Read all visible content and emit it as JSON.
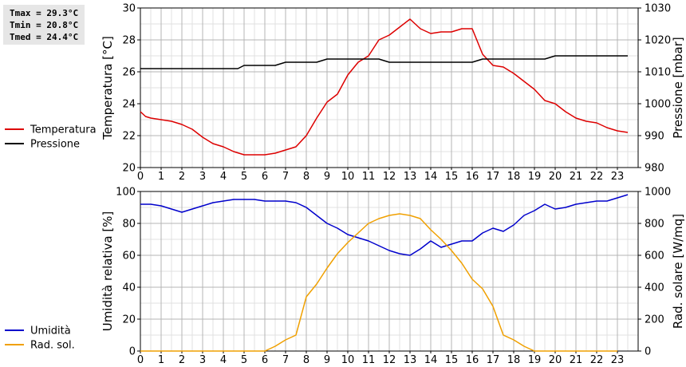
{
  "stats": {
    "tmax": "Tmax = 29.3°C",
    "tmin": "Tmin = 20.8°C",
    "tmed": "Tmed = 24.4°C"
  },
  "chart_data": [
    {
      "type": "line",
      "ylabel": "Temperatura [°C]",
      "y2label": "Pressione [mbar]",
      "x_ticks": [
        0,
        1,
        2,
        3,
        4,
        5,
        6,
        7,
        8,
        9,
        10,
        11,
        12,
        13,
        14,
        15,
        16,
        17,
        18,
        19,
        20,
        21,
        22,
        23
      ],
      "xlim": [
        0,
        24
      ],
      "ylim": [
        20,
        30
      ],
      "y_ticks": [
        20,
        22,
        24,
        26,
        28,
        30
      ],
      "y2lim": [
        980,
        1030
      ],
      "y2_ticks": [
        980,
        990,
        1000,
        1010,
        1020,
        1030
      ],
      "grid": true,
      "legend_position": "left",
      "series": [
        {
          "name": "Temperatura",
          "color": "#dd0000",
          "axis": "left",
          "x": [
            0,
            0.25,
            0.5,
            1,
            1.5,
            2,
            2.5,
            3,
            3.5,
            4,
            4.5,
            5,
            5.5,
            6,
            6.5,
            7,
            7.5,
            8,
            8.5,
            9,
            9.5,
            10,
            10.5,
            11,
            11.5,
            12,
            12.5,
            13,
            13.5,
            14,
            14.5,
            15,
            15.5,
            16,
            16.5,
            17,
            17.5,
            18,
            18.5,
            19,
            19.5,
            20,
            20.5,
            21,
            21.5,
            22,
            22.5,
            23,
            23.5
          ],
          "y": [
            23.5,
            23.2,
            23.1,
            23.0,
            22.9,
            22.7,
            22.4,
            21.9,
            21.5,
            21.3,
            21.0,
            20.8,
            20.8,
            20.8,
            20.9,
            21.1,
            21.3,
            22.0,
            23.1,
            24.1,
            24.6,
            25.8,
            26.6,
            27.0,
            28.0,
            28.3,
            28.8,
            29.3,
            28.7,
            28.4,
            28.5,
            28.5,
            28.7,
            28.7,
            27.1,
            26.4,
            26.3,
            25.9,
            25.4,
            24.9,
            24.2,
            24.0,
            23.5,
            23.1,
            22.9,
            22.8,
            22.5,
            22.3,
            22.2
          ]
        },
        {
          "name": "Pressione",
          "color": "#000000",
          "axis": "right",
          "x": [
            0,
            1,
            2,
            3,
            4,
            4.7,
            5,
            6,
            6.5,
            7,
            8,
            8.5,
            9,
            10,
            11,
            11.5,
            12,
            13,
            14,
            15,
            16,
            16.5,
            17,
            18,
            19,
            19.5,
            20,
            21,
            22,
            23,
            23.5
          ],
          "y": [
            1011,
            1011,
            1011,
            1011,
            1011,
            1011,
            1012,
            1012,
            1012,
            1013,
            1013,
            1013,
            1014,
            1014,
            1014,
            1014,
            1013,
            1013,
            1013,
            1013,
            1013,
            1014,
            1014,
            1014,
            1014,
            1014,
            1015,
            1015,
            1015,
            1015,
            1015
          ]
        }
      ]
    },
    {
      "type": "line",
      "ylabel": "Umidità relativa [%]",
      "y2label": "Rad. solare [W/mq]",
      "x_ticks": [
        0,
        1,
        2,
        3,
        4,
        5,
        6,
        7,
        8,
        9,
        10,
        11,
        12,
        13,
        14,
        15,
        16,
        17,
        18,
        19,
        20,
        21,
        22,
        23
      ],
      "xlim": [
        0,
        24
      ],
      "ylim": [
        0,
        100
      ],
      "y_ticks": [
        0,
        20,
        40,
        60,
        80,
        100
      ],
      "y2lim": [
        0,
        1000
      ],
      "y2_ticks": [
        0,
        200,
        400,
        600,
        800,
        1000
      ],
      "grid": true,
      "legend_position": "left",
      "series": [
        {
          "name": "Umidità",
          "color": "#0000cc",
          "axis": "left",
          "x": [
            0,
            0.5,
            1,
            1.5,
            2,
            2.5,
            3,
            3.5,
            4,
            4.5,
            5,
            5.5,
            6,
            6.5,
            7,
            7.5,
            8,
            8.5,
            9,
            9.5,
            10,
            10.5,
            11,
            11.5,
            12,
            12.5,
            13,
            13.5,
            14,
            14.5,
            15,
            15.5,
            16,
            16.5,
            17,
            17.5,
            18,
            18.5,
            19,
            19.5,
            20,
            20.5,
            21,
            21.5,
            22,
            22.5,
            23,
            23.5
          ],
          "y": [
            92,
            92,
            91,
            89,
            87,
            89,
            91,
            93,
            94,
            95,
            95,
            95,
            94,
            94,
            94,
            93,
            90,
            85,
            80,
            77,
            73,
            71,
            69,
            66,
            63,
            61,
            60,
            64,
            69,
            65,
            67,
            69,
            69,
            74,
            77,
            75,
            79,
            85,
            88,
            92,
            89,
            90,
            92,
            93,
            94,
            94,
            96,
            98
          ]
        },
        {
          "name": "Rad. sol.",
          "color": "#f0a000",
          "axis": "right",
          "x": [
            0,
            1,
            2,
            3,
            4,
            5,
            6,
            6.5,
            7,
            7.5,
            8,
            8.5,
            9,
            9.5,
            10,
            10.5,
            11,
            11.5,
            12,
            12.5,
            13,
            13.5,
            14,
            14.5,
            15,
            15.5,
            16,
            16.5,
            17,
            17.5,
            18,
            18.5,
            19,
            19.5,
            20,
            21,
            22,
            23
          ],
          "y": [
            0,
            0,
            0,
            0,
            0,
            0,
            0,
            30,
            70,
            100,
            340,
            420,
            520,
            610,
            680,
            740,
            800,
            830,
            850,
            860,
            850,
            830,
            760,
            700,
            630,
            550,
            450,
            390,
            280,
            100,
            70,
            30,
            0,
            0,
            0,
            0,
            0,
            0
          ]
        }
      ]
    }
  ]
}
